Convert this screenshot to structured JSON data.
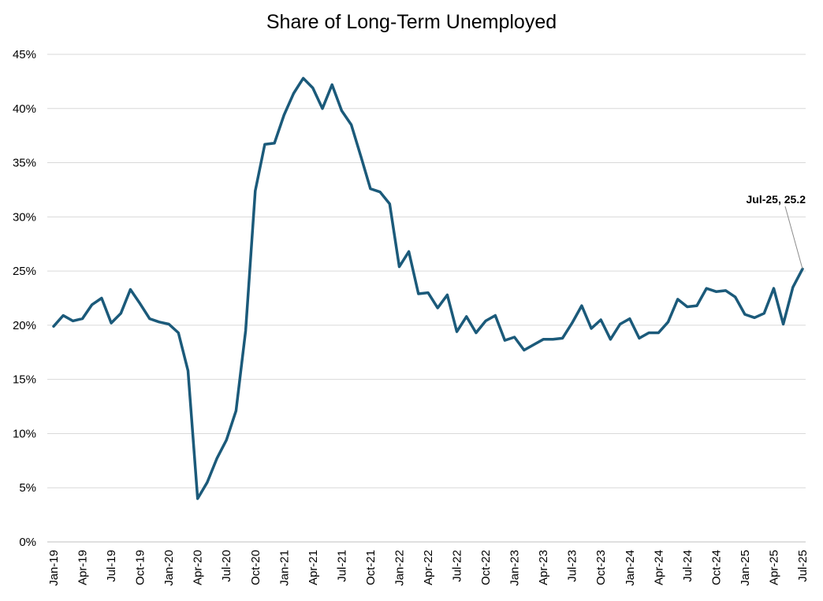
{
  "chart_data": {
    "type": "line",
    "title": "Share of Long-Term Unemployed",
    "xlabel": "",
    "ylabel": "",
    "ylim": [
      0,
      45
    ],
    "y_ticks": [
      "0%",
      "5%",
      "10%",
      "15%",
      "20%",
      "25%",
      "30%",
      "35%",
      "40%",
      "45%"
    ],
    "y_tick_values": [
      0,
      5,
      10,
      15,
      20,
      25,
      30,
      35,
      40,
      45
    ],
    "x_tick_labels": [
      "Jan-19",
      "Apr-19",
      "Jul-19",
      "Oct-19",
      "Jan-20",
      "Apr-20",
      "Jul-20",
      "Oct-20",
      "Jan-21",
      "Apr-21",
      "Jul-21",
      "Oct-21",
      "Jan-22",
      "Apr-22",
      "Jul-22",
      "Oct-22",
      "Jan-23",
      "Apr-23",
      "Jul-23",
      "Oct-23",
      "Jan-24",
      "Apr-24",
      "Jul-24",
      "Oct-24",
      "Jan-25",
      "Apr-25",
      "Jul-25"
    ],
    "grid": true,
    "line_color": "#1b5a7a",
    "series": [
      {
        "x": [
          "Jan-19",
          "Feb-19",
          "Mar-19",
          "Apr-19",
          "May-19",
          "Jun-19",
          "Jul-19",
          "Aug-19",
          "Sep-19",
          "Oct-19",
          "Nov-19",
          "Dec-19",
          "Jan-20",
          "Feb-20",
          "Mar-20",
          "Apr-20",
          "May-20",
          "Jun-20",
          "Jul-20",
          "Aug-20",
          "Sep-20",
          "Oct-20",
          "Nov-20",
          "Dec-20",
          "Jan-21",
          "Feb-21",
          "Mar-21",
          "Apr-21",
          "May-21",
          "Jun-21",
          "Jul-21",
          "Aug-21",
          "Sep-21",
          "Oct-21",
          "Nov-21",
          "Dec-21",
          "Jan-22",
          "Feb-22",
          "Mar-22",
          "Apr-22",
          "May-22",
          "Jun-22",
          "Jul-22",
          "Aug-22",
          "Sep-22",
          "Oct-22",
          "Nov-22",
          "Dec-22",
          "Jan-23",
          "Feb-23",
          "Mar-23",
          "Apr-23",
          "May-23",
          "Jun-23",
          "Jul-23",
          "Aug-23",
          "Sep-23",
          "Oct-23",
          "Nov-23",
          "Dec-23",
          "Jan-24",
          "Feb-24",
          "Mar-24",
          "Apr-24",
          "May-24",
          "Jun-24",
          "Jul-24",
          "Aug-24",
          "Sep-24",
          "Oct-24",
          "Nov-24",
          "Dec-24",
          "Jan-25",
          "Feb-25",
          "Mar-25",
          "Apr-25",
          "May-25",
          "Jun-25",
          "Jul-25"
        ],
        "values": [
          19.9,
          20.9,
          20.4,
          20.6,
          21.9,
          22.5,
          20.2,
          21.1,
          23.3,
          22.0,
          20.6,
          20.3,
          20.1,
          19.3,
          15.8,
          4.0,
          5.5,
          7.7,
          9.4,
          12.1,
          19.5,
          32.4,
          36.7,
          36.8,
          39.4,
          41.4,
          42.8,
          41.9,
          40.0,
          42.2,
          39.8,
          38.5,
          35.6,
          32.6,
          32.3,
          31.2,
          25.4,
          26.8,
          22.9,
          23.0,
          21.6,
          22.8,
          19.4,
          20.8,
          19.3,
          20.4,
          20.9,
          18.6,
          18.9,
          17.7,
          18.2,
          18.7,
          18.7,
          18.8,
          20.2,
          21.8,
          19.7,
          20.5,
          18.7,
          20.1,
          20.6,
          18.8,
          19.3,
          19.3,
          20.3,
          22.4,
          21.7,
          21.8,
          23.4,
          23.1,
          23.2,
          22.6,
          21.0,
          20.7,
          21.1,
          23.4,
          20.1,
          23.5,
          25.2
        ]
      }
    ],
    "annotation": "Jul-25, 25.2"
  }
}
